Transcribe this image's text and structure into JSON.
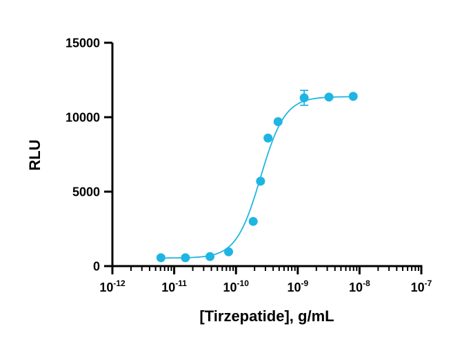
{
  "chart_data": {
    "type": "scatter",
    "title": "",
    "xlabel": "[Tirzepatide], g/mL",
    "ylabel": "RLU",
    "x_scale": "log10",
    "xlim": [
      1e-12,
      1e-07
    ],
    "ylim": [
      0,
      15000
    ],
    "x_ticks": [
      {
        "base": "10",
        "exp": "-12",
        "value": 1e-12
      },
      {
        "base": "10",
        "exp": "-11",
        "value": 1e-11
      },
      {
        "base": "10",
        "exp": "-10",
        "value": 1e-10
      },
      {
        "base": "10",
        "exp": "-9",
        "value": 1e-09
      },
      {
        "base": "10",
        "exp": "-8",
        "value": 1e-08
      },
      {
        "base": "10",
        "exp": "-7",
        "value": 1e-07
      }
    ],
    "y_ticks": [
      {
        "label": "0",
        "value": 0
      },
      {
        "label": "5000",
        "value": 5000
      },
      {
        "label": "10000",
        "value": 10000
      },
      {
        "label": "15000",
        "value": 15000
      }
    ],
    "grid": false,
    "legend": "none",
    "color": "#1fb5e2",
    "series": [
      {
        "points": [
          {
            "x": 6.1e-12,
            "y": 560,
            "err": 0
          },
          {
            "x": 1.52e-11,
            "y": 560,
            "err": 0
          },
          {
            "x": 3.8e-11,
            "y": 640,
            "err": 0
          },
          {
            "x": 7.6e-11,
            "y": 960,
            "err": 0
          },
          {
            "x": 1.9e-10,
            "y": 3000,
            "err": 0
          },
          {
            "x": 2.5e-10,
            "y": 5700,
            "err": 0
          },
          {
            "x": 3.3e-10,
            "y": 8600,
            "err": 0
          },
          {
            "x": 4.8e-10,
            "y": 9700,
            "err": 0
          },
          {
            "x": 1.27e-09,
            "y": 11300,
            "err": 500
          },
          {
            "x": 3.2e-09,
            "y": 11350,
            "err": 0
          },
          {
            "x": 7.9e-09,
            "y": 11400,
            "err": 0
          }
        ],
        "fit": {
          "model": "4PL",
          "bottom": 540,
          "top": 11380,
          "ec50": 2.5e-10,
          "hill": 2.2
        }
      }
    ]
  }
}
